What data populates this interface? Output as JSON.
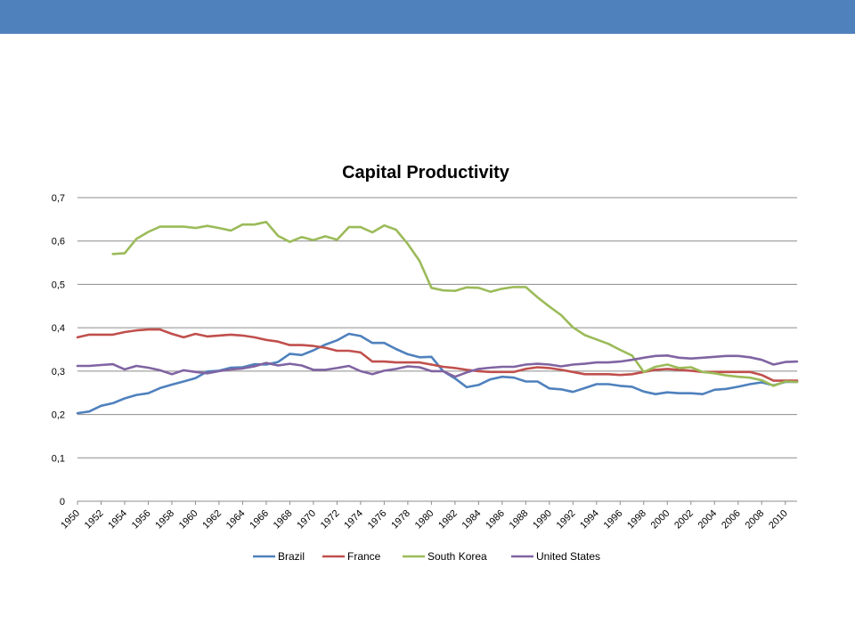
{
  "chart_data": {
    "type": "line",
    "title": "Capital Productivity",
    "xlabel": "",
    "ylabel": "",
    "ylim": [
      0,
      0.7
    ],
    "yticks": [
      "0",
      "0,1",
      "0,2",
      "0,3",
      "0,4",
      "0,5",
      "0,6",
      "0,7"
    ],
    "xlim": [
      1950,
      2011
    ],
    "xtick_labels": [
      "1950",
      "1952",
      "1954",
      "1956",
      "1958",
      "1960",
      "1962",
      "1964",
      "1966",
      "1968",
      "1970",
      "1972",
      "1974",
      "1976",
      "1978",
      "1980",
      "1982",
      "1984",
      "1986",
      "1988",
      "1990",
      "1992",
      "1994",
      "1996",
      "1998",
      "2000",
      "2002",
      "2004",
      "2006",
      "2008",
      "2010"
    ],
    "grid": "horizontal",
    "legend_position": "bottom",
    "x": [
      1950,
      1951,
      1952,
      1953,
      1954,
      1955,
      1956,
      1957,
      1958,
      1959,
      1960,
      1961,
      1962,
      1963,
      1964,
      1965,
      1966,
      1967,
      1968,
      1969,
      1970,
      1971,
      1972,
      1973,
      1974,
      1975,
      1976,
      1977,
      1978,
      1979,
      1980,
      1981,
      1982,
      1983,
      1984,
      1985,
      1986,
      1987,
      1988,
      1989,
      1990,
      1991,
      1992,
      1993,
      1994,
      1995,
      1996,
      1997,
      1998,
      1999,
      2000,
      2001,
      2002,
      2003,
      2004,
      2005,
      2006,
      2007,
      2008,
      2009,
      2010,
      2011
    ],
    "series": [
      {
        "name": "Brazil",
        "color": "#4f81bd",
        "values": [
          0.203,
          0.207,
          0.22,
          0.226,
          0.237,
          0.245,
          0.249,
          0.261,
          0.269,
          0.276,
          0.284,
          0.299,
          0.301,
          0.308,
          0.309,
          0.316,
          0.315,
          0.321,
          0.34,
          0.337,
          0.348,
          0.361,
          0.371,
          0.386,
          0.381,
          0.365,
          0.365,
          0.351,
          0.339,
          0.332,
          0.333,
          0.3,
          0.283,
          0.263,
          0.268,
          0.281,
          0.287,
          0.285,
          0.276,
          0.276,
          0.26,
          0.258,
          0.252,
          0.261,
          0.27,
          0.27,
          0.266,
          0.264,
          0.253,
          0.247,
          0.251,
          0.249,
          0.249,
          0.247,
          0.257,
          0.259,
          0.264,
          0.27,
          0.274,
          0.267,
          0.275,
          0.275
        ]
      },
      {
        "name": "France",
        "color": "#c0504d",
        "values": [
          0.378,
          0.384,
          0.384,
          0.384,
          0.39,
          0.394,
          0.396,
          0.396,
          0.386,
          0.378,
          0.386,
          0.38,
          0.382,
          0.384,
          0.382,
          0.378,
          0.372,
          0.368,
          0.36,
          0.36,
          0.358,
          0.354,
          0.347,
          0.347,
          0.343,
          0.322,
          0.322,
          0.32,
          0.32,
          0.32,
          0.315,
          0.31,
          0.307,
          0.303,
          0.3,
          0.298,
          0.298,
          0.298,
          0.305,
          0.309,
          0.307,
          0.303,
          0.298,
          0.293,
          0.293,
          0.293,
          0.291,
          0.293,
          0.298,
          0.303,
          0.305,
          0.303,
          0.301,
          0.298,
          0.298,
          0.298,
          0.298,
          0.298,
          0.291,
          0.278,
          0.278,
          0.278
        ]
      },
      {
        "name": "South Korea",
        "color": "#9bbb59",
        "values": [
          null,
          null,
          null,
          0.57,
          0.572,
          0.605,
          0.621,
          0.633,
          0.633,
          0.633,
          0.63,
          0.635,
          0.63,
          0.624,
          0.638,
          0.638,
          0.644,
          0.612,
          0.598,
          0.609,
          0.602,
          0.611,
          0.603,
          0.632,
          0.632,
          0.62,
          0.636,
          0.626,
          0.593,
          0.554,
          0.492,
          0.486,
          0.485,
          0.493,
          0.492,
          0.483,
          0.49,
          0.494,
          0.494,
          0.47,
          0.449,
          0.429,
          0.401,
          0.383,
          0.373,
          0.363,
          0.349,
          0.336,
          0.298,
          0.31,
          0.315,
          0.307,
          0.309,
          0.298,
          0.295,
          0.29,
          0.287,
          0.285,
          0.279,
          0.266,
          0.276,
          0.275
        ]
      },
      {
        "name": "United States",
        "color": "#8064a2",
        "values": [
          0.312,
          0.312,
          0.314,
          0.316,
          0.304,
          0.312,
          0.308,
          0.302,
          0.293,
          0.302,
          0.298,
          0.295,
          0.3,
          0.304,
          0.306,
          0.311,
          0.319,
          0.313,
          0.317,
          0.313,
          0.303,
          0.303,
          0.307,
          0.312,
          0.3,
          0.293,
          0.301,
          0.305,
          0.311,
          0.309,
          0.3,
          0.3,
          0.287,
          0.297,
          0.305,
          0.308,
          0.31,
          0.31,
          0.315,
          0.317,
          0.315,
          0.311,
          0.315,
          0.317,
          0.32,
          0.32,
          0.322,
          0.326,
          0.331,
          0.335,
          0.336,
          0.331,
          0.329,
          0.331,
          0.333,
          0.335,
          0.335,
          0.332,
          0.326,
          0.315,
          0.321,
          0.322
        ]
      }
    ]
  }
}
